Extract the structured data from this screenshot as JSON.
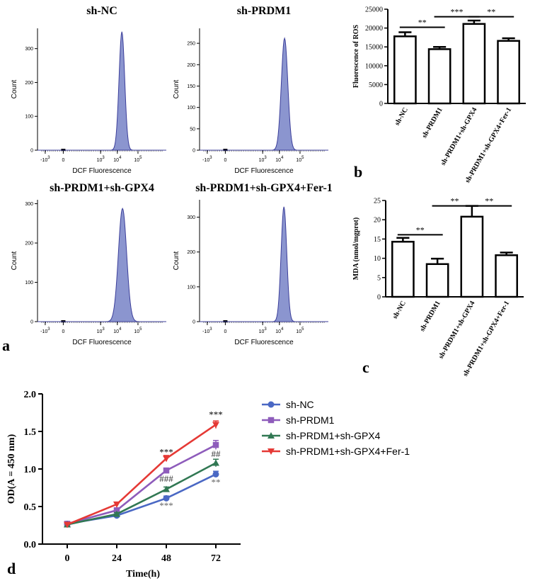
{
  "panel_labels": {
    "a": "a",
    "b": "b",
    "c": "c",
    "d": "d"
  },
  "flow": {
    "xlabel": "DCF Fluorescence",
    "ylabel": "Count",
    "xticks": [
      {
        "b": "-10",
        "e": "3"
      },
      {
        "b": "0",
        "e": ""
      },
      {
        "b": "10",
        "e": "3"
      },
      {
        "b": "10",
        "e": "4"
      },
      {
        "b": "10",
        "e": "5"
      }
    ],
    "panels": [
      {
        "title": "sh-NC",
        "yticks": [
          "0",
          "100",
          "200",
          "300"
        ],
        "ymax": 360,
        "peak": 350,
        "center": 0.655,
        "sigma": 0.022
      },
      {
        "title": "sh-PRDM1",
        "yticks": [
          "0",
          "50",
          "100",
          "150",
          "200",
          "250"
        ],
        "ymax": 285,
        "peak": 262,
        "center": 0.66,
        "sigma": 0.025
      },
      {
        "title": "sh-PRDM1+sh-GPX4",
        "yticks": [
          "0",
          "100",
          "200",
          "300"
        ],
        "ymax": 310,
        "peak": 288,
        "center": 0.66,
        "sigma": 0.032
      },
      {
        "title": "sh-PRDM1+sh-GPX4+Fer-1",
        "yticks": [
          "0",
          "100",
          "200",
          "300"
        ],
        "ymax": 350,
        "peak": 330,
        "center": 0.655,
        "sigma": 0.022
      }
    ]
  },
  "chart_data": [
    {
      "type": "bar",
      "id": "b",
      "title": "",
      "categories": [
        "sh-NC",
        "sh-PRDM1",
        "sh-PRDM1+sh-GPX4",
        "sh-PRDM1+sh-GPX4+Fer-1"
      ],
      "values": [
        17800,
        14400,
        21100,
        16600
      ],
      "errors": [
        1100,
        600,
        900,
        700
      ],
      "ylabel": "Fluorescence of ROS",
      "ylim": [
        0,
        25000
      ],
      "yticks": [
        "0",
        "5000",
        "10000",
        "15000",
        "20000",
        "25000"
      ],
      "significance": [
        {
          "from": 0,
          "to": 1,
          "label": "**",
          "y": 20200
        },
        {
          "from": 1,
          "to": 2,
          "label": "***",
          "y": 23000
        },
        {
          "from": 2,
          "to": 3,
          "label": "**",
          "y": 23000
        }
      ]
    },
    {
      "type": "bar",
      "id": "c",
      "title": "",
      "categories": [
        "sh-NC",
        "sh-PRDM1",
        "sh-PRDM1+sh-GPX4",
        "sh-PRDM1+sh-GPX4+Fer-1"
      ],
      "values": [
        14.3,
        8.5,
        20.8,
        10.8
      ],
      "errors": [
        1.0,
        1.4,
        2.8,
        0.7
      ],
      "ylabel": "MDA (nmol/mgprot)",
      "ylim": [
        0,
        25
      ],
      "yticks": [
        "0",
        "5",
        "10",
        "15",
        "20",
        "25"
      ],
      "significance": [
        {
          "from": 0,
          "to": 1,
          "label": "**",
          "y": 16.1
        },
        {
          "from": 1,
          "to": 2,
          "label": "**",
          "y": 23.6
        },
        {
          "from": 2,
          "to": 3,
          "label": "**",
          "y": 23.6
        }
      ]
    },
    {
      "type": "line",
      "id": "d",
      "title": "",
      "x": [
        0,
        24,
        48,
        72
      ],
      "xticks": [
        "0",
        "24",
        "48",
        "72"
      ],
      "yticks": [
        "0.0",
        "0.5",
        "1.0",
        "1.5",
        "2.0"
      ],
      "xlabel": "Time(h)",
      "ylabel": "OD(A = 450 nm)",
      "ylim": [
        0,
        2.0
      ],
      "xlim": [
        -12,
        84
      ],
      "series": [
        {
          "name": "sh-NC",
          "values": [
            0.27,
            0.38,
            0.61,
            0.93
          ],
          "errors": [
            0.02,
            0.02,
            0.03,
            0.04
          ],
          "color": "#4a68c4",
          "marker": "circle"
        },
        {
          "name": "sh-PRDM1",
          "values": [
            0.27,
            0.45,
            0.98,
            1.32
          ],
          "errors": [
            0.02,
            0.02,
            0.03,
            0.06
          ],
          "color": "#8e5cbb",
          "marker": "square"
        },
        {
          "name": "sh-PRDM1+sh-GPX4",
          "values": [
            0.26,
            0.4,
            0.73,
            1.08
          ],
          "errors": [
            0.02,
            0.02,
            0.03,
            0.05
          ],
          "color": "#317853",
          "marker": "triangle-up"
        },
        {
          "name": "sh-PRDM1+sh-GPX4+Fer-1",
          "values": [
            0.26,
            0.53,
            1.14,
            1.59
          ],
          "errors": [
            0.02,
            0.02,
            0.04,
            0.05
          ],
          "color": "#e53935",
          "marker": "triangle-down"
        }
      ],
      "annotations": [
        {
          "text": "***",
          "x": 48,
          "y": 1.22,
          "color": "#000000"
        },
        {
          "text": "###",
          "x": 48,
          "y": 0.87,
          "color": "#333333"
        },
        {
          "text": "***",
          "x": 48,
          "y": 0.51,
          "color": "#666666"
        },
        {
          "text": "***",
          "x": 72,
          "y": 1.72,
          "color": "#000000"
        },
        {
          "text": "##",
          "x": 72,
          "y": 1.2,
          "color": "#333333"
        },
        {
          "text": "**",
          "x": 72,
          "y": 0.82,
          "color": "#666666"
        }
      ]
    }
  ]
}
